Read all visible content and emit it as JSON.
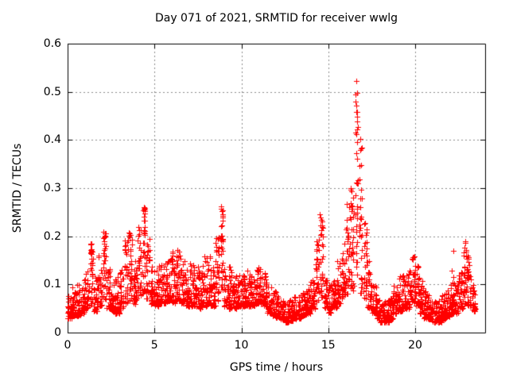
{
  "chart_data": {
    "type": "scatter",
    "title": "Day 071 of 2021, SRMTID for receiver wwlg",
    "xlabel": "GPS time / hours",
    "ylabel": "SRMTID / TECUs",
    "xlim": [
      0,
      24
    ],
    "ylim": [
      0,
      0.6
    ],
    "xticks": [
      [
        0,
        "0"
      ],
      [
        5,
        "5"
      ],
      [
        10,
        "10"
      ],
      [
        15,
        "15"
      ],
      [
        20,
        "20"
      ]
    ],
    "yticks": [
      [
        0,
        "0"
      ],
      [
        0.1,
        "0.1"
      ],
      [
        0.2,
        "0.2"
      ],
      [
        0.3,
        "0.3"
      ],
      [
        0.4,
        "0.4"
      ],
      [
        0.5,
        "0.5"
      ],
      [
        0.6,
        "0.6"
      ]
    ],
    "grid": true,
    "legend": false,
    "marker": "+",
    "marker_color": "#ff0000",
    "grid_color": "#8c8c8c",
    "axis_color": "#000000",
    "background_color": "#ffffff",
    "data_start_hour": 0.0,
    "data_end_hour": 23.4,
    "max_point": [
      16.62,
      0.52
    ],
    "sampling": {
      "points_per_bin": 30,
      "seed": 42,
      "bin_format": [
        "x_center",
        "y_min",
        "y_max",
        "bias_exponent",
        "x_spread"
      ]
    },
    "envelope_bins": [
      [
        0.125,
        0.03,
        0.09,
        2.2,
        0.25
      ],
      [
        0.375,
        0.035,
        0.095,
        2.2,
        0.25
      ],
      [
        0.625,
        0.035,
        0.1,
        2.2,
        0.25
      ],
      [
        0.875,
        0.04,
        0.11,
        2.2,
        0.25
      ],
      [
        1.125,
        0.05,
        0.13,
        2.0,
        0.25
      ],
      [
        1.375,
        0.055,
        0.19,
        1.2,
        0.15
      ],
      [
        1.625,
        0.045,
        0.12,
        2.0,
        0.25
      ],
      [
        1.875,
        0.055,
        0.16,
        1.6,
        0.25
      ],
      [
        2.125,
        0.065,
        0.21,
        1.1,
        0.15
      ],
      [
        2.375,
        0.05,
        0.15,
        1.8,
        0.25
      ],
      [
        2.625,
        0.04,
        0.12,
        2.0,
        0.25
      ],
      [
        2.875,
        0.04,
        0.12,
        2.2,
        0.25
      ],
      [
        3.125,
        0.05,
        0.13,
        2.0,
        0.25
      ],
      [
        3.375,
        0.06,
        0.2,
        1.3,
        0.18
      ],
      [
        3.625,
        0.065,
        0.21,
        1.3,
        0.18
      ],
      [
        3.875,
        0.06,
        0.15,
        1.8,
        0.25
      ],
      [
        4.125,
        0.07,
        0.22,
        1.2,
        0.2
      ],
      [
        4.375,
        0.08,
        0.26,
        1.1,
        0.18
      ],
      [
        4.625,
        0.07,
        0.2,
        1.4,
        0.25
      ],
      [
        4.875,
        0.06,
        0.14,
        1.8,
        0.25
      ],
      [
        5.125,
        0.055,
        0.13,
        2.0,
        0.25
      ],
      [
        5.375,
        0.06,
        0.14,
        2.0,
        0.25
      ],
      [
        5.625,
        0.06,
        0.15,
        1.8,
        0.25
      ],
      [
        5.875,
        0.065,
        0.16,
        1.8,
        0.25
      ],
      [
        6.125,
        0.06,
        0.17,
        1.6,
        0.25
      ],
      [
        6.375,
        0.065,
        0.17,
        1.6,
        0.25
      ],
      [
        6.625,
        0.06,
        0.15,
        1.8,
        0.25
      ],
      [
        6.875,
        0.055,
        0.14,
        2.0,
        0.25
      ],
      [
        7.125,
        0.055,
        0.15,
        1.9,
        0.25
      ],
      [
        7.375,
        0.055,
        0.14,
        2.0,
        0.25
      ],
      [
        7.625,
        0.05,
        0.14,
        2.0,
        0.25
      ],
      [
        7.875,
        0.055,
        0.16,
        1.8,
        0.25
      ],
      [
        8.125,
        0.06,
        0.16,
        1.8,
        0.25
      ],
      [
        8.375,
        0.055,
        0.14,
        1.9,
        0.25
      ],
      [
        8.625,
        0.065,
        0.2,
        1.3,
        0.2
      ],
      [
        8.875,
        0.08,
        0.26,
        1.1,
        0.15
      ],
      [
        9.125,
        0.055,
        0.14,
        1.8,
        0.25
      ],
      [
        9.375,
        0.05,
        0.14,
        1.9,
        0.25
      ],
      [
        9.625,
        0.05,
        0.12,
        2.0,
        0.25
      ],
      [
        9.875,
        0.055,
        0.12,
        2.0,
        0.25
      ],
      [
        10.125,
        0.055,
        0.13,
        2.0,
        0.25
      ],
      [
        10.375,
        0.055,
        0.13,
        2.0,
        0.25
      ],
      [
        10.625,
        0.055,
        0.12,
        2.0,
        0.25
      ],
      [
        10.875,
        0.06,
        0.13,
        1.9,
        0.25
      ],
      [
        11.125,
        0.06,
        0.135,
        1.9,
        0.25
      ],
      [
        11.375,
        0.055,
        0.13,
        1.9,
        0.25
      ],
      [
        11.625,
        0.04,
        0.1,
        2.1,
        0.25
      ],
      [
        11.875,
        0.035,
        0.09,
        2.1,
        0.25
      ],
      [
        12.125,
        0.03,
        0.08,
        2.2,
        0.25
      ],
      [
        12.375,
        0.028,
        0.072,
        2.2,
        0.25
      ],
      [
        12.625,
        0.022,
        0.068,
        2.2,
        0.25
      ],
      [
        12.875,
        0.025,
        0.07,
        2.2,
        0.25
      ],
      [
        13.125,
        0.028,
        0.078,
        2.2,
        0.25
      ],
      [
        13.375,
        0.03,
        0.08,
        2.2,
        0.25
      ],
      [
        13.625,
        0.035,
        0.09,
        2.1,
        0.25
      ],
      [
        13.875,
        0.04,
        0.1,
        2.1,
        0.25
      ],
      [
        14.125,
        0.05,
        0.12,
        2.0,
        0.25
      ],
      [
        14.375,
        0.06,
        0.2,
        1.2,
        0.18
      ],
      [
        14.625,
        0.065,
        0.24,
        1.1,
        0.15
      ],
      [
        14.875,
        0.05,
        0.11,
        2.0,
        0.25
      ],
      [
        15.125,
        0.04,
        0.1,
        2.1,
        0.25
      ],
      [
        15.375,
        0.05,
        0.11,
        2.0,
        0.25
      ],
      [
        15.625,
        0.06,
        0.15,
        1.6,
        0.25
      ],
      [
        15.875,
        0.07,
        0.2,
        1.3,
        0.22
      ],
      [
        16.125,
        0.08,
        0.27,
        1.2,
        0.22
      ],
      [
        16.375,
        0.085,
        0.3,
        1.2,
        0.2
      ],
      [
        16.625,
        0.1,
        0.52,
        1.0,
        0.12
      ],
      [
        16.875,
        0.08,
        0.4,
        1.1,
        0.15
      ],
      [
        17.125,
        0.07,
        0.23,
        1.3,
        0.18
      ],
      [
        17.375,
        0.05,
        0.15,
        1.8,
        0.25
      ],
      [
        17.625,
        0.04,
        0.1,
        2.1,
        0.25
      ],
      [
        17.875,
        0.03,
        0.08,
        2.2,
        0.25
      ],
      [
        18.125,
        0.022,
        0.07,
        2.2,
        0.25
      ],
      [
        18.375,
        0.022,
        0.068,
        2.2,
        0.25
      ],
      [
        18.625,
        0.028,
        0.08,
        2.2,
        0.25
      ],
      [
        18.875,
        0.04,
        0.1,
        2.1,
        0.25
      ],
      [
        19.125,
        0.045,
        0.12,
        2.0,
        0.25
      ],
      [
        19.375,
        0.05,
        0.125,
        2.0,
        0.25
      ],
      [
        19.625,
        0.05,
        0.13,
        2.0,
        0.25
      ],
      [
        19.875,
        0.06,
        0.16,
        1.7,
        0.25
      ],
      [
        20.125,
        0.055,
        0.14,
        1.8,
        0.25
      ],
      [
        20.375,
        0.04,
        0.11,
        2.0,
        0.25
      ],
      [
        20.625,
        0.03,
        0.09,
        2.1,
        0.25
      ],
      [
        20.875,
        0.028,
        0.08,
        2.2,
        0.25
      ],
      [
        21.125,
        0.022,
        0.07,
        2.2,
        0.25
      ],
      [
        21.375,
        0.022,
        0.07,
        2.2,
        0.25
      ],
      [
        21.625,
        0.028,
        0.08,
        2.2,
        0.25
      ],
      [
        21.875,
        0.032,
        0.09,
        2.2,
        0.25
      ],
      [
        22.125,
        0.04,
        0.17,
        2.0,
        0.22
      ],
      [
        22.375,
        0.04,
        0.105,
        2.1,
        0.25
      ],
      [
        22.625,
        0.05,
        0.13,
        1.9,
        0.25
      ],
      [
        22.875,
        0.06,
        0.19,
        1.4,
        0.22
      ],
      [
        23.125,
        0.055,
        0.16,
        1.6,
        0.25
      ],
      [
        23.375,
        0.045,
        0.1,
        2.0,
        0.2
      ]
    ],
    "notable_peaks": [
      [
        1.32,
        0.185
      ],
      [
        2.08,
        0.209
      ],
      [
        3.52,
        0.208
      ],
      [
        4.38,
        0.257
      ],
      [
        4.42,
        0.248
      ],
      [
        6.3,
        0.171
      ],
      [
        8.82,
        0.262
      ],
      [
        8.86,
        0.252
      ],
      [
        11.0,
        0.135
      ],
      [
        14.52,
        0.245
      ],
      [
        16.3,
        0.3
      ],
      [
        16.62,
        0.522
      ],
      [
        16.64,
        0.497
      ],
      [
        16.6,
        0.472
      ],
      [
        16.66,
        0.458
      ],
      [
        16.7,
        0.427
      ],
      [
        16.86,
        0.402
      ],
      [
        17.1,
        0.228
      ],
      [
        22.2,
        0.17
      ],
      [
        22.9,
        0.19
      ],
      [
        23.0,
        0.16
      ]
    ]
  }
}
